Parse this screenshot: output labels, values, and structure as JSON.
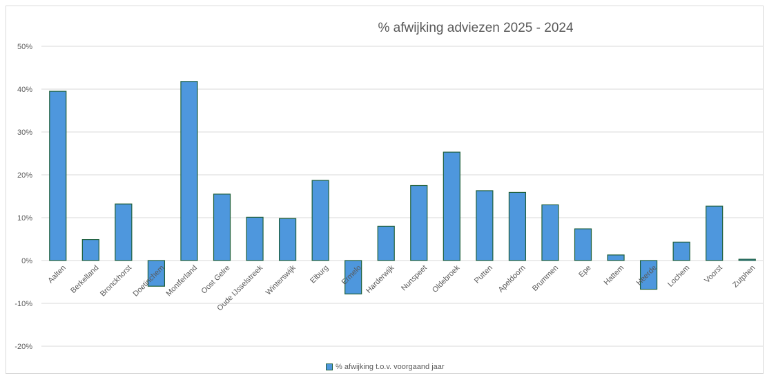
{
  "chart_data": {
    "type": "bar",
    "title": "% afwijking adviezen 2025 - 2024",
    "xlabel": "",
    "ylabel": "",
    "ylim": [
      -0.2,
      0.5
    ],
    "yticks": [
      -0.2,
      -0.1,
      0,
      0.1,
      0.2,
      0.3,
      0.4,
      0.5
    ],
    "ytick_labels": [
      "-20%",
      "-10%",
      "0%",
      "10%",
      "20%",
      "30%",
      "40%",
      "50%"
    ],
    "grid": true,
    "legend_position": "bottom",
    "categories": [
      "Aalten",
      "Berkelland",
      "Bronckhorst",
      "Doetinchem",
      "Montferland",
      "Oost Gelre",
      "Oude IJsselstreek",
      "Winterswijk",
      "Elburg",
      "Ermelo",
      "Harderwijk",
      "Nunspeet",
      "Oldebroek",
      "Putten",
      "Apeldoorn",
      "Brummen",
      "Epe",
      "Hattem",
      "Heerde",
      "Lochem",
      "Voorst",
      "Zutphen"
    ],
    "series": [
      {
        "name": "% afwijking t.o.v. voorgaand jaar",
        "values": [
          0.395,
          0.049,
          0.132,
          -0.06,
          0.418,
          0.155,
          0.101,
          0.098,
          0.187,
          -0.078,
          0.08,
          0.175,
          0.253,
          0.163,
          0.159,
          0.13,
          0.074,
          0.013,
          -0.067,
          0.043,
          0.127,
          0.003
        ]
      }
    ],
    "colors": {
      "bar_fill": "#4e97dd",
      "bar_stroke": "#1f5f3a",
      "grid": "#d9d9d9",
      "text": "#595959"
    }
  }
}
